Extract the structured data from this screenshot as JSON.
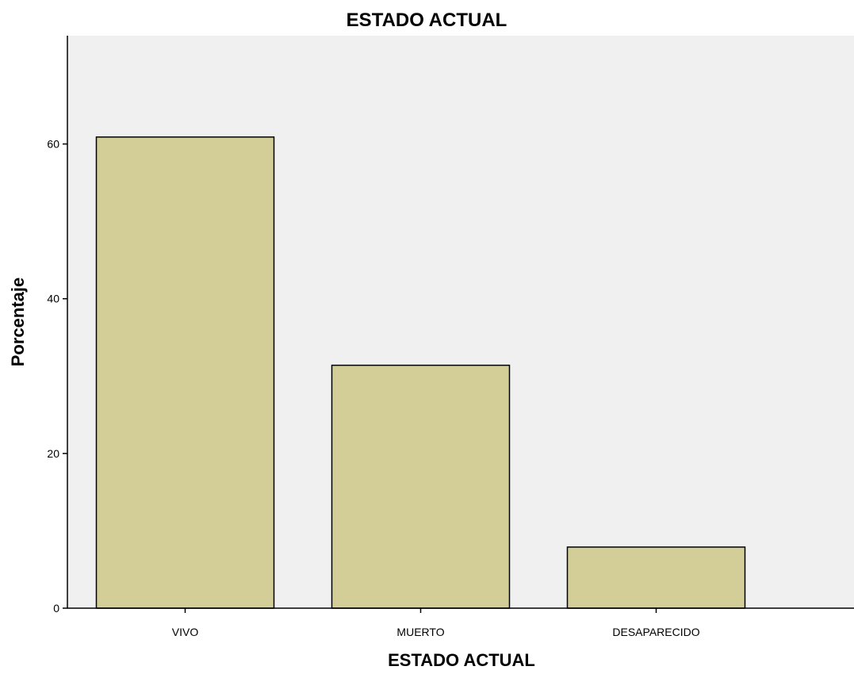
{
  "chart_data": {
    "type": "bar",
    "title": "ESTADO ACTUAL",
    "xlabel": "ESTADO ACTUAL",
    "ylabel": "Porcentaje",
    "categories": [
      "VIVO",
      "MUERTO",
      "DESAPARECIDO"
    ],
    "values": [
      60.9,
      31.4,
      7.9
    ],
    "ylim": [
      0,
      74
    ],
    "yticks": [
      0,
      20,
      40,
      60
    ],
    "ytick_labels": [
      "0",
      "20",
      "40",
      "60"
    ],
    "grid": false,
    "legend": "none"
  },
  "colors": {
    "bar_fill": "#d3cd97",
    "bar_stroke": "#000000",
    "plot_background": "#f0f0f0",
    "axis": "#000000"
  }
}
